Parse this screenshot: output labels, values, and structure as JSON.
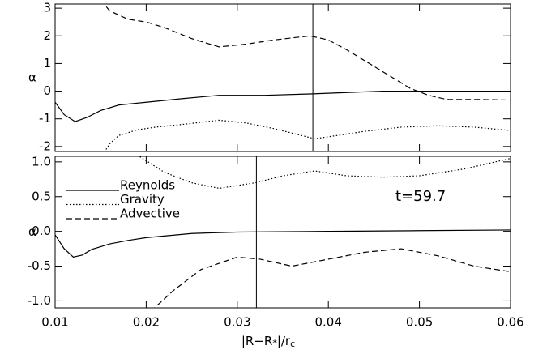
{
  "chart_data": [
    {
      "type": "line",
      "ylabel": "α",
      "xlim": [
        0.01,
        0.06
      ],
      "xticks": [
        0.01,
        0.02,
        0.03,
        0.04,
        0.05,
        0.06
      ],
      "ylim": [
        -2.18,
        3.15
      ],
      "yticks": [
        -2,
        -1,
        0,
        1,
        2,
        3
      ],
      "vline": 0.0383,
      "series": [
        {
          "style": "solid",
          "color": "#000000",
          "x": [
            0.01,
            0.011,
            0.0122,
            0.0135,
            0.015,
            0.017,
            0.02,
            0.024,
            0.028,
            0.033,
            0.038,
            0.042,
            0.046,
            0.05,
            0.055,
            0.06
          ],
          "values": [
            -0.4,
            -0.85,
            -1.1,
            -0.95,
            -0.7,
            -0.5,
            -0.4,
            -0.27,
            -0.15,
            -0.15,
            -0.1,
            -0.05,
            0.0,
            0.0,
            0.0,
            0.0
          ]
        },
        {
          "style": "dotted",
          "color": "#000000",
          "x": [
            0.0152,
            0.016,
            0.017,
            0.019,
            0.021,
            0.024,
            0.028,
            0.031,
            0.034,
            0.0385,
            0.041,
            0.044,
            0.048,
            0.052,
            0.056,
            0.06
          ],
          "values": [
            -2.3,
            -1.9,
            -1.6,
            -1.4,
            -1.3,
            -1.2,
            -1.05,
            -1.15,
            -1.35,
            -1.72,
            -1.6,
            -1.45,
            -1.3,
            -1.25,
            -1.3,
            -1.42
          ]
        },
        {
          "style": "dashed",
          "color": "#000000",
          "x": [
            0.015,
            0.016,
            0.018,
            0.02,
            0.022,
            0.025,
            0.028,
            0.031,
            0.034,
            0.038,
            0.04,
            0.042,
            0.045,
            0.047,
            0.049,
            0.051,
            0.053,
            0.056,
            0.06
          ],
          "values": [
            3.3,
            2.9,
            2.6,
            2.5,
            2.3,
            1.9,
            1.6,
            1.7,
            1.85,
            2.0,
            1.85,
            1.5,
            0.9,
            0.5,
            0.1,
            -0.15,
            -0.3,
            -0.3,
            -0.32
          ]
        }
      ]
    },
    {
      "type": "line",
      "ylabel": "α",
      "xlabel": [
        "|R−R",
        "*",
        "|/r",
        "c"
      ],
      "xlim": [
        0.01,
        0.06
      ],
      "xticks": [
        0.01,
        0.02,
        0.03,
        0.04,
        0.05,
        0.06
      ],
      "ylim": [
        -1.1,
        1.08
      ],
      "yticks": [
        {
          "value": -1.0,
          "label": "-1.0"
        },
        {
          "value": -0.5,
          "label": "-0.5"
        },
        {
          "value": 0.0,
          "label": "0.0"
        },
        {
          "value": 0.5,
          "label": "0.5"
        },
        {
          "value": 1.0,
          "label": "1.0"
        }
      ],
      "vline": 0.0321,
      "annotation": "t=59.7",
      "series": [
        {
          "name": "Reynolds",
          "style": "solid",
          "color": "#000000",
          "x": [
            0.01,
            0.011,
            0.012,
            0.013,
            0.014,
            0.016,
            0.018,
            0.02,
            0.025,
            0.03,
            0.04,
            0.05,
            0.06
          ],
          "values": [
            -0.05,
            -0.25,
            -0.37,
            -0.34,
            -0.26,
            -0.18,
            -0.13,
            -0.09,
            -0.03,
            -0.01,
            0.0,
            0.01,
            0.02
          ]
        },
        {
          "name": "Gravity",
          "style": "dotted",
          "color": "#000000",
          "x": [
            0.019,
            0.022,
            0.025,
            0.028,
            0.032,
            0.035,
            0.0385,
            0.042,
            0.046,
            0.05,
            0.055,
            0.06
          ],
          "values": [
            1.1,
            0.85,
            0.7,
            0.62,
            0.7,
            0.8,
            0.87,
            0.8,
            0.78,
            0.8,
            0.9,
            1.05
          ]
        },
        {
          "name": "Advective",
          "style": "dashed",
          "color": "#000000",
          "x": [
            0.0205,
            0.023,
            0.026,
            0.03,
            0.0325,
            0.036,
            0.04,
            0.044,
            0.048,
            0.052,
            0.056,
            0.06
          ],
          "values": [
            -1.15,
            -0.85,
            -0.55,
            -0.37,
            -0.4,
            -0.5,
            -0.4,
            -0.3,
            -0.25,
            -0.35,
            -0.5,
            -0.58
          ]
        }
      ]
    }
  ]
}
